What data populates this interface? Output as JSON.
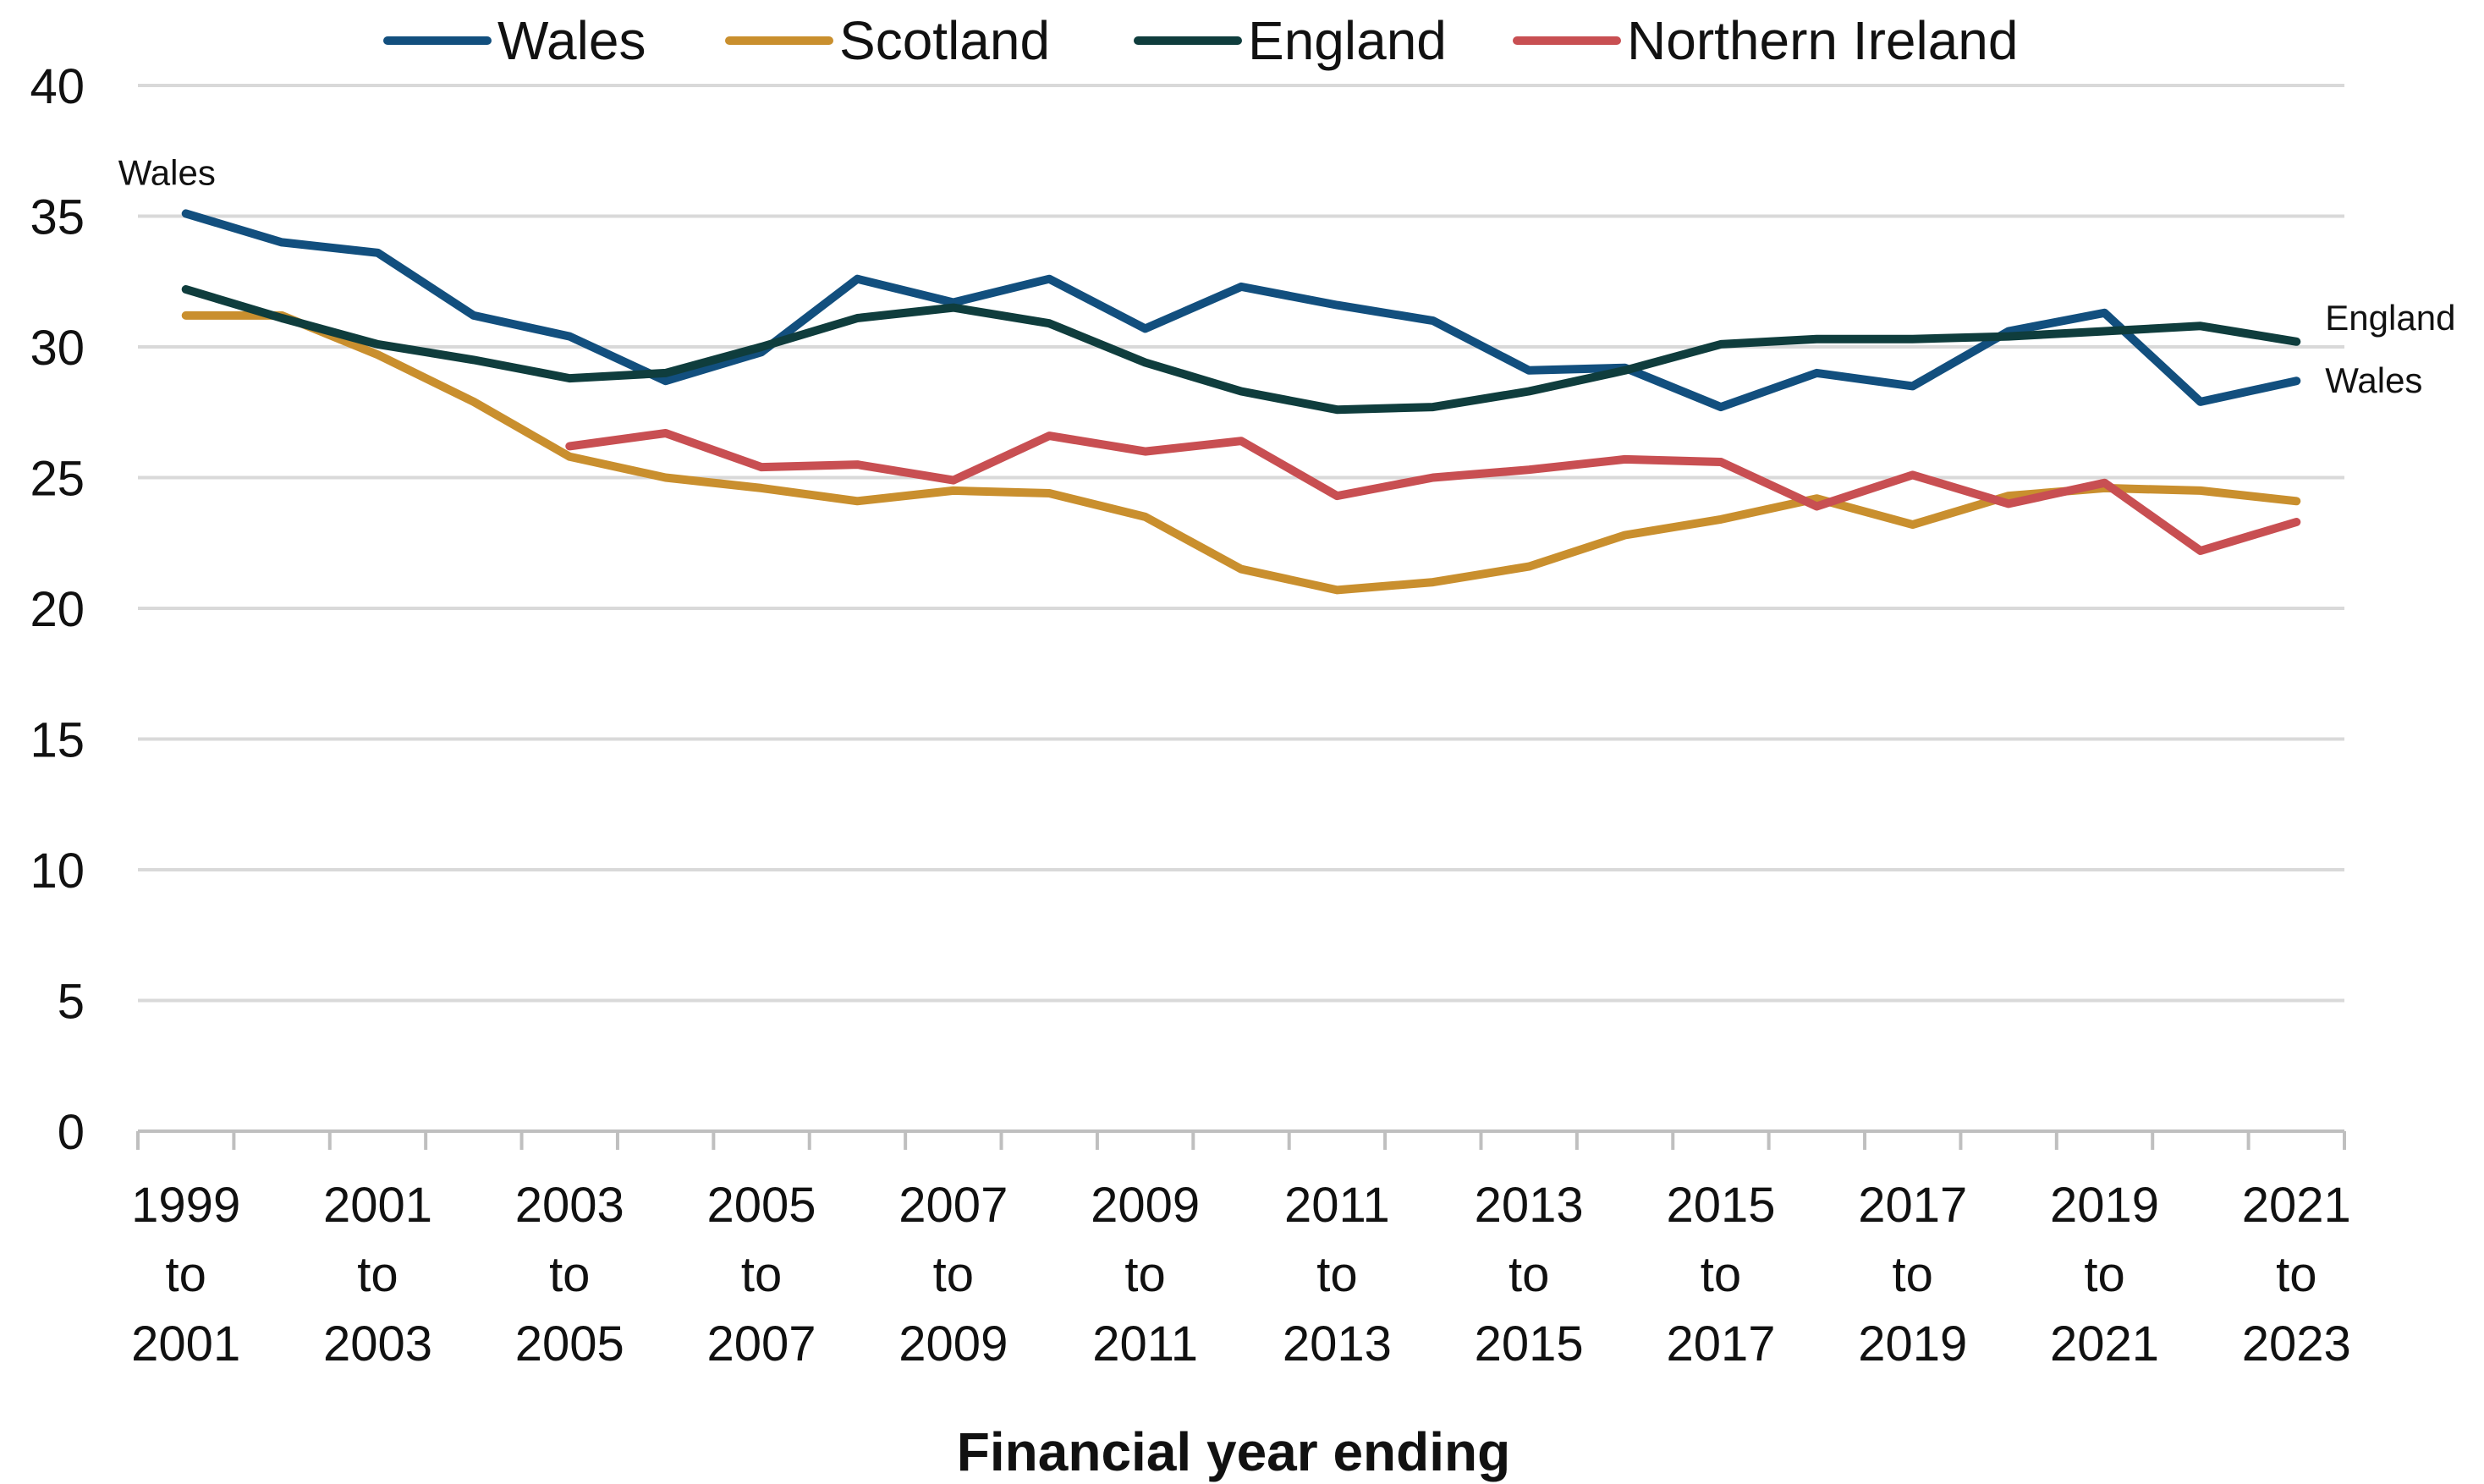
{
  "chart_data": {
    "type": "line",
    "title": "",
    "xlabel": "Financial year ending",
    "ylabel": "",
    "ylim": [
      0,
      40
    ],
    "yticks": [
      0,
      5,
      10,
      15,
      20,
      25,
      30,
      35,
      40
    ],
    "grid": true,
    "legend_position": "top",
    "x": [
      "1999 to 2001",
      "2000 to 2002",
      "2001 to 2003",
      "2002 to 2004",
      "2003 to 2005",
      "2004 to 2006",
      "2005 to 2007",
      "2006 to 2008",
      "2007 to 2009",
      "2008 to 2010",
      "2009 to 2011",
      "2010 to 2012",
      "2011 to 2013",
      "2012 to 2014",
      "2013 to 2015",
      "2014 to 2016",
      "2015 to 2017",
      "2016 to 2018",
      "2017 to 2019",
      "2018 to 2020",
      "2019 to 2021",
      "2020 to 2022",
      "2021 to 2023"
    ],
    "x_tick_labels": [
      {
        "index": 0,
        "lines": [
          "1999",
          "to",
          "2001"
        ]
      },
      {
        "index": 2,
        "lines": [
          "2001",
          "to",
          "2003"
        ]
      },
      {
        "index": 4,
        "lines": [
          "2003",
          "to",
          "2005"
        ]
      },
      {
        "index": 6,
        "lines": [
          "2005",
          "to",
          "2007"
        ]
      },
      {
        "index": 8,
        "lines": [
          "2007",
          "to",
          "2009"
        ]
      },
      {
        "index": 10,
        "lines": [
          "2009",
          "to",
          "2011"
        ]
      },
      {
        "index": 12,
        "lines": [
          "2011",
          "to",
          "2013"
        ]
      },
      {
        "index": 14,
        "lines": [
          "2013",
          "to",
          "2015"
        ]
      },
      {
        "index": 16,
        "lines": [
          "2015",
          "to",
          "2017"
        ]
      },
      {
        "index": 18,
        "lines": [
          "2017",
          "to",
          "2019"
        ]
      },
      {
        "index": 20,
        "lines": [
          "2019",
          "to",
          "2021"
        ]
      },
      {
        "index": 22,
        "lines": [
          "2021",
          "to",
          "2023"
        ]
      }
    ],
    "series": [
      {
        "name": "Wales",
        "color": "#124f7e",
        "values": [
          35.1,
          34.0,
          33.6,
          31.2,
          30.4,
          28.7,
          29.8,
          32.6,
          31.7,
          32.6,
          30.7,
          32.3,
          31.6,
          31.0,
          29.1,
          29.2,
          27.7,
          29.0,
          28.5,
          30.6,
          31.3,
          27.9,
          28.7
        ]
      },
      {
        "name": "Scotland",
        "color": "#c98f2e",
        "values": [
          31.2,
          31.2,
          29.7,
          27.9,
          25.8,
          25.0,
          24.6,
          24.1,
          24.5,
          24.4,
          23.5,
          21.5,
          20.7,
          21.0,
          21.6,
          22.8,
          23.4,
          24.2,
          23.2,
          24.3,
          24.6,
          24.5,
          24.1
        ]
      },
      {
        "name": "England",
        "color": "#0f3d3d",
        "values": [
          32.2,
          31.1,
          30.1,
          29.5,
          28.8,
          29.0,
          30.0,
          31.1,
          31.5,
          30.9,
          29.4,
          28.3,
          27.6,
          27.7,
          28.3,
          29.1,
          30.1,
          30.3,
          30.3,
          30.4,
          30.6,
          30.8,
          30.2
        ]
      },
      {
        "name": "Northern Ireland",
        "color": "#c84f52",
        "values": [
          null,
          null,
          null,
          null,
          26.2,
          26.7,
          25.4,
          25.5,
          24.9,
          26.6,
          26.0,
          26.4,
          24.3,
          25.0,
          25.3,
          25.7,
          25.6,
          23.9,
          25.1,
          24.0,
          24.8,
          22.2,
          23.3
        ]
      }
    ],
    "annotations": [
      {
        "text": "Wales",
        "series": "Wales",
        "at": "start"
      },
      {
        "text": "England",
        "series": "England",
        "at": "end"
      },
      {
        "text": "Wales",
        "series": "Wales",
        "at": "end"
      }
    ]
  }
}
